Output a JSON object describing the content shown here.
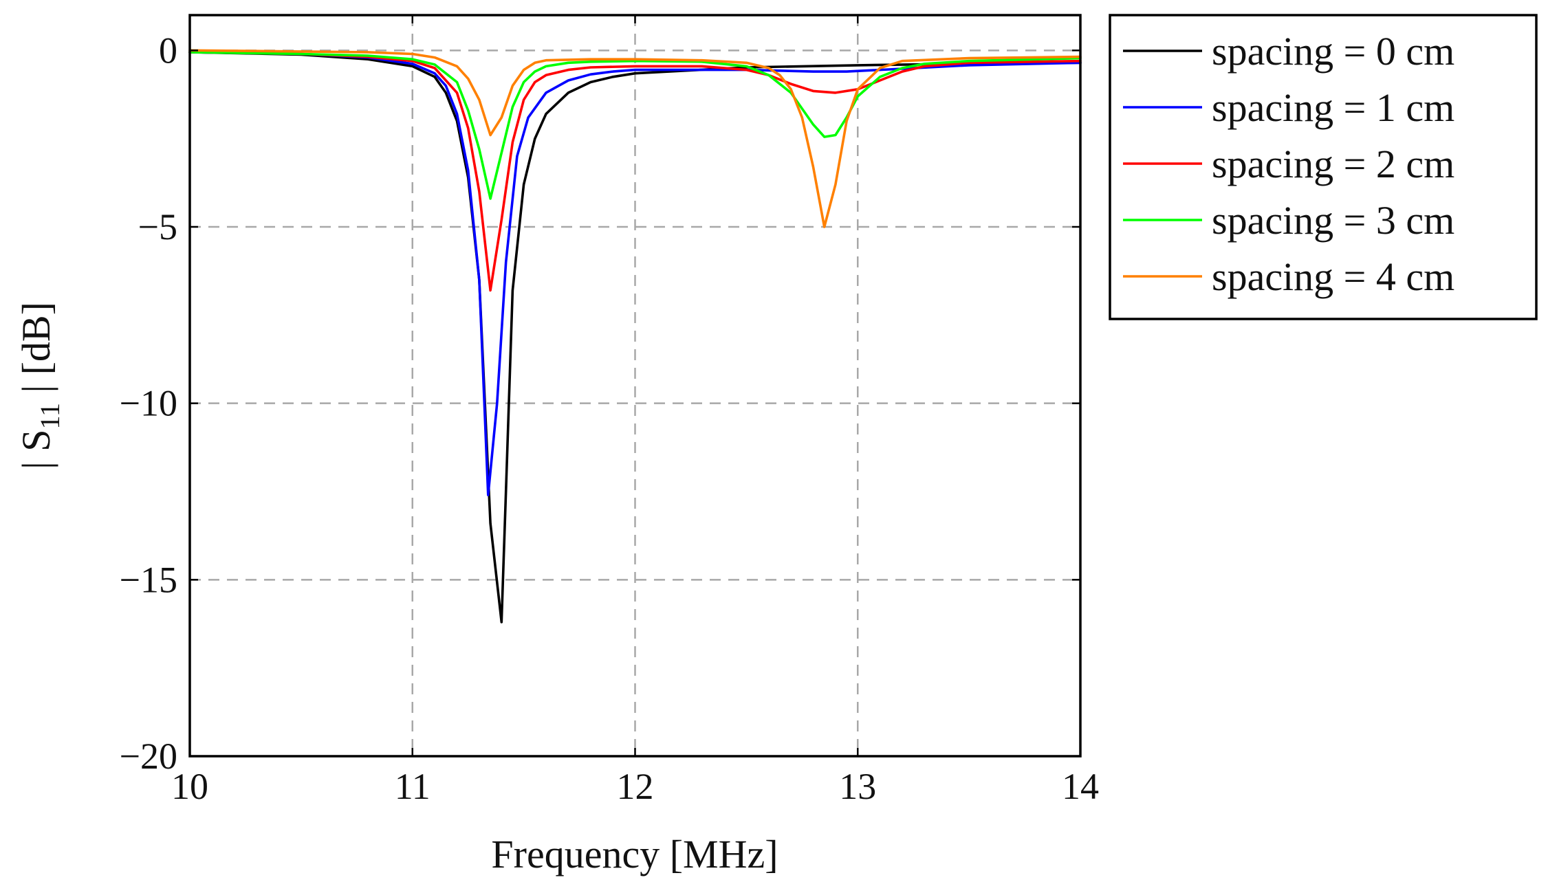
{
  "chart_data": {
    "type": "line",
    "title": "",
    "xlabel": "Frequency [MHz]",
    "ylabel_parts": [
      "| S",
      "11",
      " | [dB]"
    ],
    "xlim": [
      10,
      14
    ],
    "ylim": [
      -20,
      1
    ],
    "xticks": [
      10,
      11,
      12,
      13,
      14
    ],
    "xtick_labels": [
      "10",
      "11",
      "12",
      "13",
      "14"
    ],
    "yticks": [
      0,
      -5,
      -10,
      -15,
      -20
    ],
    "ytick_labels": [
      "0",
      "−5",
      "−10",
      "−15",
      "−20"
    ],
    "grid": true,
    "legend_position": "outside-top-right",
    "series": [
      {
        "name": "spacing = 0 cm",
        "color": "#000000",
        "points": [
          [
            10,
            -0.05
          ],
          [
            10.5,
            -0.12
          ],
          [
            10.8,
            -0.25
          ],
          [
            11.0,
            -0.45
          ],
          [
            11.1,
            -0.75
          ],
          [
            11.15,
            -1.2
          ],
          [
            11.2,
            -2.0
          ],
          [
            11.25,
            -3.6
          ],
          [
            11.3,
            -6.5
          ],
          [
            11.35,
            -13.4
          ],
          [
            11.4,
            -16.2
          ],
          [
            11.42,
            -12.5
          ],
          [
            11.45,
            -6.8
          ],
          [
            11.5,
            -3.8
          ],
          [
            11.55,
            -2.5
          ],
          [
            11.6,
            -1.8
          ],
          [
            11.7,
            -1.2
          ],
          [
            11.8,
            -0.9
          ],
          [
            11.9,
            -0.75
          ],
          [
            12.0,
            -0.65
          ],
          [
            12.5,
            -0.48
          ],
          [
            13.0,
            -0.42
          ],
          [
            13.5,
            -0.38
          ],
          [
            14.0,
            -0.35
          ]
        ]
      },
      {
        "name": "spacing = 1 cm",
        "color": "#0000ff",
        "points": [
          [
            10,
            -0.05
          ],
          [
            10.5,
            -0.1
          ],
          [
            10.8,
            -0.2
          ],
          [
            11.0,
            -0.38
          ],
          [
            11.1,
            -0.65
          ],
          [
            11.15,
            -1.0
          ],
          [
            11.2,
            -1.8
          ],
          [
            11.25,
            -3.4
          ],
          [
            11.3,
            -6.5
          ],
          [
            11.34,
            -12.6
          ],
          [
            11.38,
            -10.0
          ],
          [
            11.42,
            -6.0
          ],
          [
            11.47,
            -3.0
          ],
          [
            11.52,
            -1.9
          ],
          [
            11.6,
            -1.2
          ],
          [
            11.7,
            -0.85
          ],
          [
            11.8,
            -0.68
          ],
          [
            11.9,
            -0.6
          ],
          [
            12.0,
            -0.55
          ],
          [
            12.5,
            -0.55
          ],
          [
            12.8,
            -0.6
          ],
          [
            12.95,
            -0.6
          ],
          [
            13.2,
            -0.52
          ],
          [
            13.5,
            -0.42
          ],
          [
            14.0,
            -0.35
          ]
        ]
      },
      {
        "name": "spacing = 2 cm",
        "color": "#ff0000",
        "points": [
          [
            10,
            -0.05
          ],
          [
            10.5,
            -0.1
          ],
          [
            10.8,
            -0.18
          ],
          [
            11.0,
            -0.3
          ],
          [
            11.1,
            -0.5
          ],
          [
            11.2,
            -1.2
          ],
          [
            11.25,
            -2.2
          ],
          [
            11.3,
            -4.0
          ],
          [
            11.35,
            -6.8
          ],
          [
            11.4,
            -4.8
          ],
          [
            11.45,
            -2.6
          ],
          [
            11.5,
            -1.4
          ],
          [
            11.55,
            -0.9
          ],
          [
            11.6,
            -0.7
          ],
          [
            11.7,
            -0.55
          ],
          [
            11.8,
            -0.48
          ],
          [
            12.0,
            -0.45
          ],
          [
            12.3,
            -0.45
          ],
          [
            12.5,
            -0.55
          ],
          [
            12.6,
            -0.7
          ],
          [
            12.7,
            -0.95
          ],
          [
            12.8,
            -1.15
          ],
          [
            12.9,
            -1.2
          ],
          [
            13.0,
            -1.1
          ],
          [
            13.1,
            -0.85
          ],
          [
            13.2,
            -0.6
          ],
          [
            13.3,
            -0.45
          ],
          [
            13.5,
            -0.35
          ],
          [
            14.0,
            -0.3
          ]
        ]
      },
      {
        "name": "spacing = 3 cm",
        "color": "#00ff00",
        "points": [
          [
            10,
            -0.05
          ],
          [
            10.5,
            -0.1
          ],
          [
            10.8,
            -0.15
          ],
          [
            11.0,
            -0.25
          ],
          [
            11.1,
            -0.4
          ],
          [
            11.2,
            -0.9
          ],
          [
            11.25,
            -1.7
          ],
          [
            11.3,
            -2.8
          ],
          [
            11.35,
            -4.2
          ],
          [
            11.4,
            -2.9
          ],
          [
            11.45,
            -1.6
          ],
          [
            11.5,
            -0.9
          ],
          [
            11.55,
            -0.6
          ],
          [
            11.6,
            -0.45
          ],
          [
            11.7,
            -0.35
          ],
          [
            11.8,
            -0.32
          ],
          [
            12.0,
            -0.3
          ],
          [
            12.3,
            -0.32
          ],
          [
            12.5,
            -0.45
          ],
          [
            12.6,
            -0.7
          ],
          [
            12.7,
            -1.2
          ],
          [
            12.8,
            -2.1
          ],
          [
            12.85,
            -2.45
          ],
          [
            12.9,
            -2.4
          ],
          [
            12.95,
            -1.9
          ],
          [
            13.0,
            -1.3
          ],
          [
            13.1,
            -0.75
          ],
          [
            13.2,
            -0.5
          ],
          [
            13.3,
            -0.38
          ],
          [
            13.5,
            -0.3
          ],
          [
            14.0,
            -0.22
          ]
        ]
      },
      {
        "name": "spacing = 4 cm",
        "color": "#ff8000",
        "points": [
          [
            10,
            0.0
          ],
          [
            10.5,
            -0.03
          ],
          [
            10.8,
            -0.05
          ],
          [
            11.0,
            -0.1
          ],
          [
            11.1,
            -0.2
          ],
          [
            11.2,
            -0.45
          ],
          [
            11.25,
            -0.8
          ],
          [
            11.3,
            -1.4
          ],
          [
            11.35,
            -2.4
          ],
          [
            11.4,
            -1.9
          ],
          [
            11.45,
            -1.0
          ],
          [
            11.5,
            -0.55
          ],
          [
            11.55,
            -0.35
          ],
          [
            11.6,
            -0.28
          ],
          [
            11.8,
            -0.25
          ],
          [
            12.0,
            -0.25
          ],
          [
            12.3,
            -0.28
          ],
          [
            12.5,
            -0.35
          ],
          [
            12.6,
            -0.5
          ],
          [
            12.65,
            -0.7
          ],
          [
            12.7,
            -1.1
          ],
          [
            12.75,
            -1.9
          ],
          [
            12.8,
            -3.3
          ],
          [
            12.85,
            -5.0
          ],
          [
            12.9,
            -3.8
          ],
          [
            12.95,
            -2.0
          ],
          [
            13.0,
            -1.1
          ],
          [
            13.1,
            -0.5
          ],
          [
            13.2,
            -0.3
          ],
          [
            13.5,
            -0.22
          ],
          [
            14.0,
            -0.18
          ]
        ]
      }
    ]
  }
}
